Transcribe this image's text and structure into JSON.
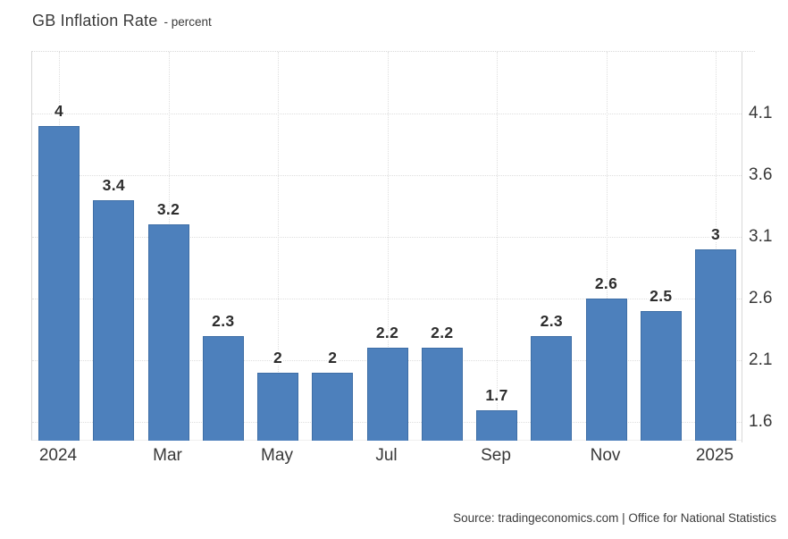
{
  "header": {
    "title": "GB Inflation Rate",
    "subtitle": "- percent"
  },
  "footer": {
    "source": "Source: tradingeconomics.com | Office for National Statistics"
  },
  "chart_data": {
    "type": "bar",
    "title": "GB Inflation Rate",
    "subtitle": "percent",
    "categories": [
      "2024",
      "",
      "Mar",
      "",
      "May",
      "",
      "Jul",
      "",
      "Sep",
      "",
      "Nov",
      "",
      "2025"
    ],
    "values": [
      4,
      3.4,
      3.2,
      2.3,
      2,
      2,
      2.2,
      2.2,
      1.7,
      2.3,
      2.6,
      2.5,
      3
    ],
    "data_labels": [
      "4",
      "3.4",
      "3.2",
      "2.3",
      "2",
      "2",
      "2.2",
      "2.2",
      "1.7",
      "2.3",
      "2.6",
      "2.5",
      "3"
    ],
    "yticks": [
      4.1,
      3.6,
      3.1,
      2.6,
      2.1,
      1.6
    ],
    "ylim": [
      1.45,
      4.6
    ],
    "xlabel": "",
    "ylabel": "percent",
    "legend_position": "none",
    "grid": "dotted",
    "bar_color": "#4d80bc",
    "axis_side": "right"
  }
}
